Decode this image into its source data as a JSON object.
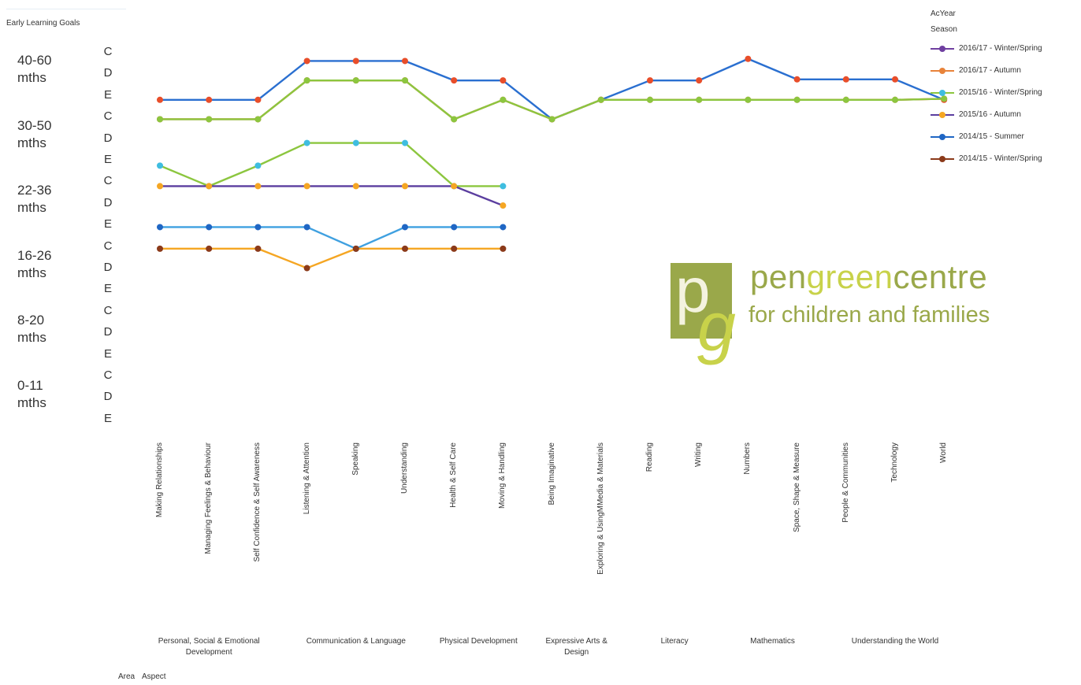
{
  "title": "Early Learning Goals",
  "y_stages": [
    "40-60 mths",
    "30-50 mths",
    "22-36 mths",
    "16-26 mths",
    "8-20 mths",
    "0-11 mths"
  ],
  "y_grades": [
    "C",
    "D",
    "E",
    "C",
    "D",
    "E",
    "C",
    "D",
    "E",
    "C",
    "D",
    "E",
    "C",
    "D",
    "E",
    "C",
    "D",
    "E"
  ],
  "footer": {
    "area_label": "Area",
    "aspect_label": "Aspect"
  },
  "legend": {
    "header1": "AcYear",
    "header2": "Season"
  },
  "logo": {
    "word1": "pen",
    "word2": "green",
    "word3": "centre",
    "tagline": "for children and families"
  },
  "chart_data": {
    "type": "line",
    "y_scale": "ordinal grade ranks (0 = 0-11 mths E, 17 = 40-60 mths C)",
    "ylim": [
      0,
      17
    ],
    "categories": [
      "Making Relationships",
      "Managing Feelings & Behaviour",
      "Self Confidence & Self Awareness",
      "Listening & Attention",
      "Speaking",
      "Understanding",
      "Health & Self Care",
      "Moving & Handling",
      "Being Imaginative",
      "Exploring & UsingMMedia & Materials",
      "Reading",
      "Writing",
      "Numbers",
      "Space, Shape & Measure",
      "People & Communities",
      "Technology",
      "World"
    ],
    "areas": [
      {
        "label": "Personal, Social & Emotional Development",
        "span": [
          0,
          2
        ]
      },
      {
        "label": "Communication & Language",
        "span": [
          3,
          5
        ]
      },
      {
        "label": "Physical Development",
        "span": [
          6,
          7
        ]
      },
      {
        "label": "Expressive Arts & Design",
        "span": [
          8,
          9
        ]
      },
      {
        "label": "Literacy",
        "span": [
          10,
          11
        ]
      },
      {
        "label": "Mathematics",
        "span": [
          12,
          13
        ]
      },
      {
        "label": "Understanding the World",
        "span": [
          14,
          16
        ]
      }
    ],
    "series": [
      {
        "name": "2016/17 - Winter/Spring",
        "color": "#6f3fa0",
        "marker": "#6f3fa0",
        "values": [
          null,
          null,
          null,
          null,
          null,
          null,
          null,
          null,
          null,
          null,
          null,
          null,
          null,
          null,
          null,
          null,
          null
        ]
      },
      {
        "name": "2016/17 - Autumn",
        "color": "#e8833a",
        "marker": "#e8833a",
        "values": [
          null,
          null,
          null,
          null,
          null,
          null,
          null,
          null,
          null,
          null,
          null,
          null,
          null,
          null,
          null,
          null,
          null
        ]
      },
      {
        "name": "2015/16 - Winter/Spring",
        "color": "#8cc63f",
        "marker": "#3fbde0",
        "values": [
          null,
          null,
          null,
          null,
          null,
          null,
          null,
          null,
          null,
          null,
          null,
          null,
          null,
          null,
          null,
          null,
          null
        ]
      },
      {
        "name": "2015/16 - Autumn",
        "color": "#5b3e9f",
        "marker": "#f5a623",
        "values": [
          null,
          null,
          null,
          null,
          null,
          null,
          null,
          null,
          null,
          null,
          null,
          null,
          null,
          null,
          null,
          null,
          null
        ]
      },
      {
        "name": "2014/15 - Summer",
        "color": "#1f66c4",
        "marker": "#1f66c4",
        "values": [
          null,
          null,
          null,
          null,
          null,
          null,
          null,
          null,
          null,
          null,
          null,
          null,
          null,
          null,
          null,
          null,
          null
        ]
      },
      {
        "name": "2014/15 - Winter/Spring",
        "color": "#8b3a1a",
        "marker": "#8b3a1a",
        "values": [
          null,
          null,
          null,
          null,
          null,
          null,
          null,
          null,
          null,
          null,
          null,
          null,
          null,
          null,
          null,
          null,
          null
        ]
      }
    ],
    "lines": [
      {
        "color": "#2a6fd0",
        "marker": "#e84e2a",
        "values": [
          15.0,
          15.0,
          15.0,
          16.8,
          16.8,
          16.8,
          15.9,
          15.9,
          14.1,
          15.0,
          15.9,
          15.9,
          16.9,
          15.95,
          15.95,
          15.95,
          15.0
        ]
      },
      {
        "color": "#e8602a",
        "marker": "#e84e2a",
        "values": [
          14.1,
          14.1,
          14.1,
          15.9,
          15.9,
          15.9,
          14.1,
          15.0,
          14.1,
          15.0,
          15.0,
          15.0,
          15.0,
          15.0,
          15.0,
          15.0,
          15.05
        ]
      },
      {
        "color": "#8cc63f",
        "marker": "#8cc63f",
        "values": [
          14.1,
          14.1,
          14.1,
          15.9,
          15.9,
          15.9,
          14.1,
          15.0,
          14.1,
          15.0,
          15.0,
          15.0,
          15.0,
          15.0,
          15.0,
          15.0,
          15.05
        ]
      },
      {
        "color": "#8cc63f",
        "marker": "#3fbde0",
        "values": [
          11.95,
          11.0,
          11.95,
          13.0,
          13.0,
          13.0,
          11.0,
          11.0,
          null,
          null,
          null,
          null,
          null,
          null,
          null,
          null,
          null
        ]
      },
      {
        "color": "#5b3e9f",
        "marker": "#f5a623",
        "values": [
          11.0,
          11.0,
          11.0,
          11.0,
          11.0,
          11.0,
          11.0,
          10.1,
          null,
          null,
          null,
          null,
          null,
          null,
          null,
          null,
          null
        ]
      },
      {
        "color": "#3fa0e0",
        "marker": "#1f66c4",
        "values": [
          9.1,
          9.1,
          9.1,
          9.1,
          8.1,
          9.1,
          9.1,
          9.1,
          null,
          null,
          null,
          null,
          null,
          null,
          null,
          null,
          null
        ]
      },
      {
        "color": "#f5a623",
        "marker": "#8b3a1a",
        "values": [
          8.1,
          8.1,
          8.1,
          7.2,
          8.1,
          8.1,
          8.1,
          8.1,
          null,
          null,
          null,
          null,
          null,
          null,
          null,
          null,
          null
        ]
      }
    ],
    "legend_position": "top-right",
    "grid": false
  }
}
